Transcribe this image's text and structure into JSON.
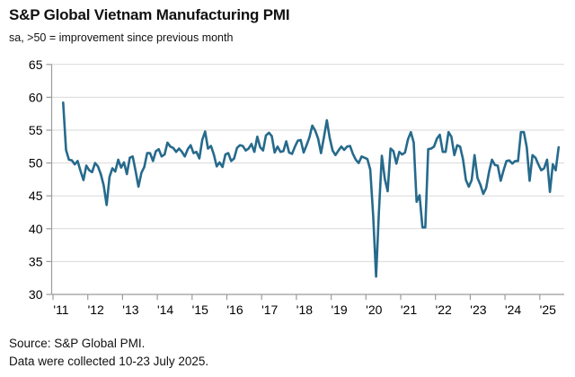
{
  "header": {
    "title": "S&P Global Vietnam Manufacturing PMI",
    "subtitle": "sa, >50 = improvement since previous month"
  },
  "footer": {
    "source_line": "Source: S&P Global PMI.",
    "collection_line": "Data were collected 10-23 July 2025."
  },
  "colors": {
    "line": "#266a8c",
    "gridline": "#d9d9d9",
    "axis": "#9b9b9b",
    "text": "#000000"
  },
  "chart_data": {
    "type": "line",
    "title": "S&P Global Vietnam Manufacturing PMI",
    "subtitle": "sa, >50 = improvement since previous month",
    "xlabel": "",
    "ylabel": "",
    "ylim": [
      30,
      65
    ],
    "y_ticks": [
      30,
      35,
      40,
      45,
      50,
      55,
      60,
      65
    ],
    "x_tick_labels": [
      "'11",
      "'12",
      "'13",
      "'14",
      "'15",
      "'16",
      "'17",
      "'18",
      "'19",
      "'20",
      "'21",
      "'22",
      "'23",
      "'24",
      "'25"
    ],
    "grid": "horizontal",
    "legend": "none",
    "frequency": "monthly",
    "start_year": 2011,
    "start_month": 4,
    "end_label": "July 2025",
    "series": [
      {
        "name": "Vietnam Manufacturing PMI",
        "values": [
          59.2,
          52.0,
          50.5,
          50.4,
          49.8,
          50.3,
          48.8,
          47.4,
          49.6,
          48.9,
          48.6,
          50.0,
          49.5,
          48.3,
          46.6,
          43.6,
          47.9,
          49.2,
          48.7,
          50.5,
          49.3,
          50.1,
          48.3,
          50.8,
          51.0,
          48.8,
          46.4,
          48.5,
          49.4,
          51.5,
          51.5,
          50.3,
          51.8,
          52.1,
          51.0,
          51.3,
          53.1,
          52.5,
          52.3,
          51.7,
          52.2,
          51.7,
          51.0,
          52.1,
          52.7,
          51.5,
          51.7,
          50.7,
          53.5,
          54.8,
          52.2,
          52.6,
          51.3,
          49.5,
          50.1,
          49.4,
          51.3,
          51.5,
          50.3,
          50.7,
          52.3,
          52.7,
          52.6,
          51.9,
          52.2,
          52.9,
          51.7,
          54.0,
          52.4,
          51.9,
          54.2,
          54.6,
          54.1,
          51.6,
          52.5,
          51.7,
          51.8,
          53.3,
          51.6,
          51.4,
          52.5,
          53.4,
          53.5,
          51.6,
          52.7,
          53.9,
          55.7,
          54.9,
          53.7,
          51.5,
          53.9,
          56.5,
          53.8,
          51.9,
          51.2,
          51.9,
          52.5,
          52.0,
          52.5,
          52.6,
          51.4,
          50.5,
          50.0,
          51.0,
          50.8,
          50.6,
          49.0,
          41.9,
          32.7,
          42.7,
          51.1,
          47.6,
          45.7,
          52.2,
          51.8,
          49.9,
          51.7,
          51.3,
          51.6,
          53.6,
          54.7,
          53.1,
          44.1,
          45.1,
          40.2,
          40.2,
          52.1,
          52.2,
          52.5,
          53.7,
          54.3,
          51.7,
          51.7,
          54.7,
          54.0,
          51.2,
          52.7,
          52.5,
          50.6,
          47.4,
          46.4,
          47.4,
          51.2,
          47.7,
          46.7,
          45.3,
          46.2,
          48.7,
          50.5,
          49.7,
          49.6,
          47.3,
          48.9,
          50.3,
          50.4,
          49.9,
          50.3,
          50.3,
          54.7,
          54.7,
          52.4,
          47.3,
          51.2,
          50.8,
          49.8,
          48.9,
          49.2,
          50.5,
          45.6,
          49.8,
          48.9,
          52.4
        ]
      }
    ]
  }
}
